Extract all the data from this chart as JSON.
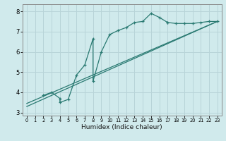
{
  "title": "",
  "xlabel": "Humidex (Indice chaleur)",
  "ylabel": "",
  "bg_color": "#d0eaec",
  "grid_color": "#b8d4d8",
  "line_color": "#2a7a72",
  "xlim": [
    -0.5,
    23.5
  ],
  "ylim": [
    2.85,
    8.35
  ],
  "xticks": [
    0,
    1,
    2,
    3,
    4,
    5,
    6,
    7,
    8,
    9,
    10,
    11,
    12,
    13,
    14,
    15,
    16,
    17,
    18,
    19,
    20,
    21,
    22,
    23
  ],
  "yticks": [
    3,
    4,
    5,
    6,
    7,
    8
  ],
  "data_line": {
    "x": [
      2,
      3,
      4,
      4,
      5,
      6,
      7,
      8,
      8,
      9,
      10,
      11,
      12,
      13,
      14,
      15,
      16,
      17,
      17,
      18,
      19,
      20,
      21,
      22,
      23
    ],
    "y": [
      3.85,
      4.0,
      3.7,
      3.5,
      3.65,
      4.85,
      5.35,
      6.65,
      4.55,
      6.0,
      6.85,
      7.05,
      7.2,
      7.45,
      7.5,
      7.9,
      7.7,
      7.45,
      7.45,
      7.4,
      7.4,
      7.4,
      7.45,
      7.5,
      7.5
    ]
  },
  "line1": {
    "x": [
      0,
      23
    ],
    "y": [
      3.45,
      7.5
    ]
  },
  "line2": {
    "x": [
      0,
      23
    ],
    "y": [
      3.3,
      7.5
    ]
  }
}
